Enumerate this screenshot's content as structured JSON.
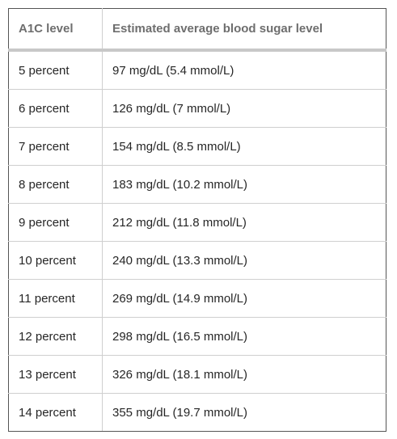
{
  "table": {
    "headers": [
      "A1C level",
      "Estimated average blood sugar level"
    ],
    "rows": [
      [
        "5 percent",
        "97 mg/dL (5.4 mmol/L)"
      ],
      [
        "6 percent",
        "126 mg/dL (7 mmol/L)"
      ],
      [
        "7 percent",
        "154 mg/dL (8.5 mmol/L)"
      ],
      [
        "8 percent",
        "183 mg/dL (10.2 mmol/L)"
      ],
      [
        "9 percent",
        "212 mg/dL (11.8 mmol/L)"
      ],
      [
        "10 percent",
        "240 mg/dL (13.3 mmol/L)"
      ],
      [
        "11 percent",
        "269 mg/dL (14.9 mmol/L)"
      ],
      [
        "12 percent",
        "298 mg/dL (16.5 mmol/L)"
      ],
      [
        "13 percent",
        "326 mg/dL (18.1 mmol/L)"
      ],
      [
        "14 percent",
        "355 mg/dL (19.7 mmol/L)"
      ]
    ]
  }
}
